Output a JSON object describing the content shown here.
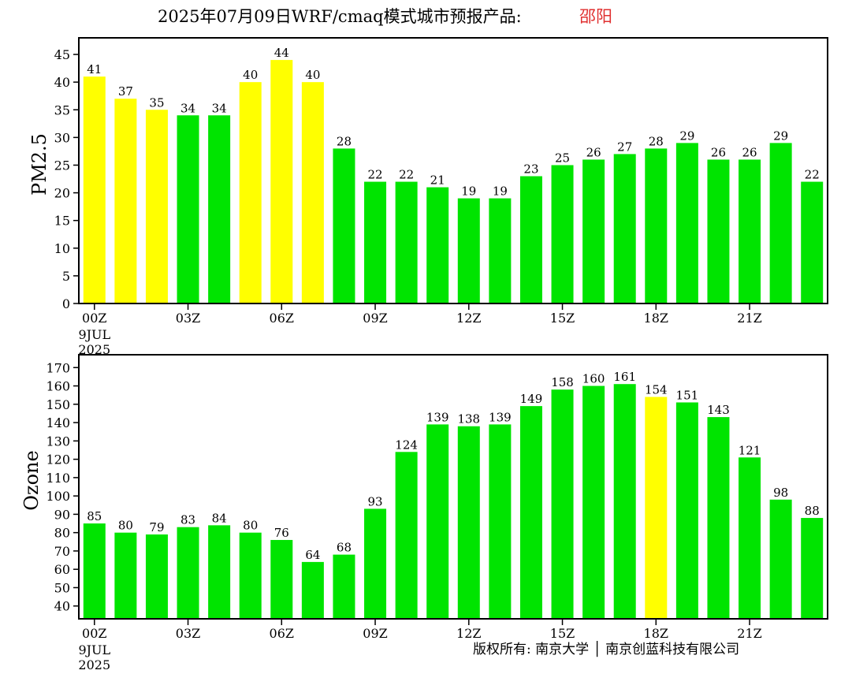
{
  "title": {
    "main": "2025年07月09日WRF/cmaq模式城市预报产品:",
    "city": "邵阳"
  },
  "colors": {
    "green": "#00e400",
    "yellow": "#ffff00",
    "axis": "#000000",
    "city": "#e03030"
  },
  "x_ticks": [
    "00Z",
    "03Z",
    "06Z",
    "09Z",
    "12Z",
    "15Z",
    "18Z",
    "21Z"
  ],
  "x_date": [
    "9JUL",
    "2025"
  ],
  "credit": "版权所有: 南京大学 │ 南京创蓝科技有限公司",
  "chart_data": [
    {
      "type": "bar",
      "ylabel": "PM2.5",
      "ylim": [
        0,
        48
      ],
      "yticks": [
        0,
        5,
        10,
        15,
        20,
        25,
        30,
        35,
        40,
        45
      ],
      "hours": [
        0,
        1,
        2,
        3,
        4,
        5,
        6,
        7,
        8,
        9,
        10,
        11,
        12,
        13,
        14,
        15,
        16,
        17,
        18,
        19,
        20,
        21,
        22,
        23
      ],
      "values": [
        41,
        37,
        35,
        34,
        34,
        40,
        44,
        40,
        28,
        22,
        22,
        21,
        19,
        19,
        23,
        25,
        26,
        27,
        28,
        29,
        26,
        26,
        29,
        22
      ],
      "bar_colors": [
        "yellow",
        "yellow",
        "yellow",
        "green",
        "green",
        "yellow",
        "yellow",
        "yellow",
        "green",
        "green",
        "green",
        "green",
        "green",
        "green",
        "green",
        "green",
        "green",
        "green",
        "green",
        "green",
        "green",
        "green",
        "green",
        "green"
      ]
    },
    {
      "type": "bar",
      "ylabel": "Ozone",
      "ylim": [
        33,
        177
      ],
      "yticks": [
        40,
        50,
        60,
        70,
        80,
        90,
        100,
        110,
        120,
        130,
        140,
        150,
        160,
        170
      ],
      "hours": [
        0,
        1,
        2,
        3,
        4,
        5,
        6,
        7,
        8,
        9,
        10,
        11,
        12,
        13,
        14,
        15,
        16,
        17,
        18,
        19,
        20,
        21,
        22,
        23
      ],
      "values": [
        85,
        80,
        79,
        83,
        84,
        80,
        76,
        64,
        68,
        93,
        124,
        139,
        138,
        139,
        149,
        158,
        160,
        161,
        154,
        151,
        143,
        121,
        98,
        88
      ],
      "bar_colors": [
        "green",
        "green",
        "green",
        "green",
        "green",
        "green",
        "green",
        "green",
        "green",
        "green",
        "green",
        "green",
        "green",
        "green",
        "green",
        "green",
        "green",
        "green",
        "yellow",
        "green",
        "green",
        "green",
        "green",
        "green"
      ]
    }
  ]
}
